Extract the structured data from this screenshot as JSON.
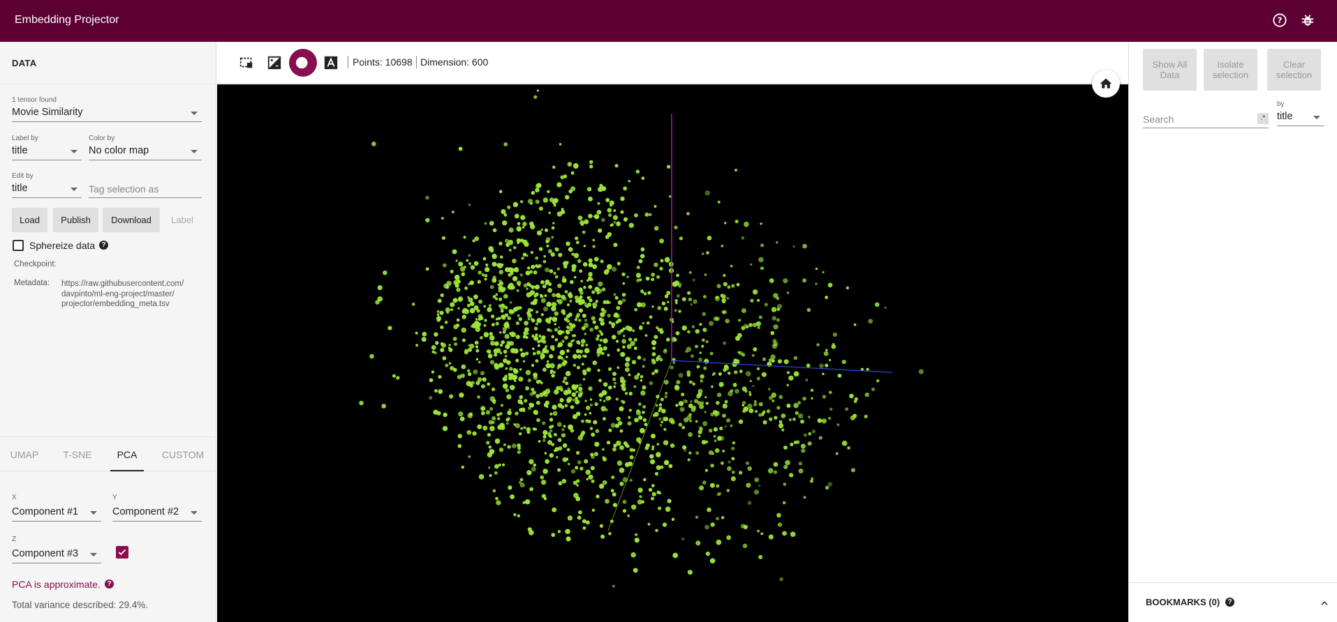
{
  "app": {
    "title": "Embedding Projector",
    "icons": [
      "help-circle-icon",
      "bug-icon"
    ]
  },
  "left": {
    "section_title": "DATA",
    "tensor_count_label": "1 tensor found",
    "tensor_value": "Movie Similarity",
    "label_by_label": "Label by",
    "label_by_value": "title",
    "color_by_label": "Color by",
    "color_by_value": "No color map",
    "edit_by_label": "Edit by",
    "edit_by_value": "title",
    "tag_placeholder": "Tag selection as",
    "buttons": {
      "load": "Load",
      "publish": "Publish",
      "download": "Download",
      "label": "Label"
    },
    "sphereize_label": "Sphereize data",
    "sphereize_checked": false,
    "checkpoint_label": "Checkpoint:",
    "metadata_label": "Metadata:",
    "metadata_lines": [
      "https://raw.githubusercontent.com/",
      "davpinto/ml-eng-project/master/",
      "projector/embedding_meta.tsv"
    ],
    "tabs": [
      "UMAP",
      "T-SNE",
      "PCA",
      "CUSTOM"
    ],
    "active_tab": "PCA",
    "x_label": "X",
    "x_value": "Component #1",
    "y_label": "Y",
    "y_value": "Component #2",
    "z_label": "Z",
    "z_value": "Component #3",
    "z_enabled": true,
    "pca_note": "PCA is approximate.",
    "variance": "Total variance described: 29.4%."
  },
  "toolbar": {
    "tools": [
      "bounding-box-select-icon",
      "night-mode-contrast-icon",
      "moon-icon",
      "text-label-icon"
    ],
    "points": "Points: 10698",
    "dimension": "Dimension: 600"
  },
  "right": {
    "buttons": {
      "show_all": "Show All Data",
      "isolate": "Isolate selection",
      "clear": "Clear selection"
    },
    "search_placeholder": "Search",
    "regex_label": ".*",
    "by_label": "by",
    "by_value": "title",
    "bookmarks_label": "BOOKMARKS (0)"
  },
  "colors": {
    "brand": "#5c0033",
    "accent": "#880e4f",
    "points": "#9be33a"
  }
}
